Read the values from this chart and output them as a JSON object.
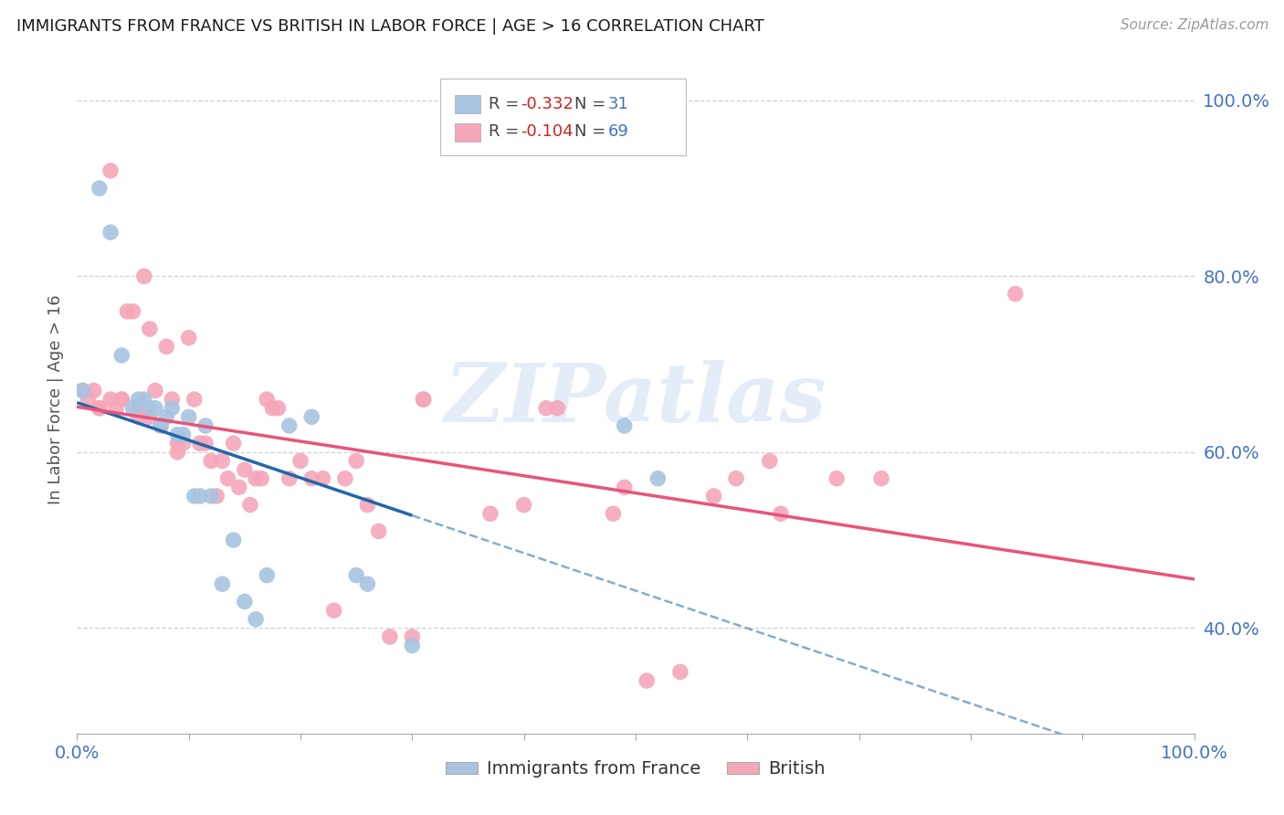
{
  "title": "IMMIGRANTS FROM FRANCE VS BRITISH IN LABOR FORCE | AGE > 16 CORRELATION CHART",
  "source": "Source: ZipAtlas.com",
  "ylabel": "In Labor Force | Age > 16",
  "xlim": [
    0.0,
    1.0
  ],
  "ylim": [
    0.28,
    1.04
  ],
  "yticks": [
    0.4,
    0.6,
    0.8,
    1.0
  ],
  "ytick_labels": [
    "40.0%",
    "60.0%",
    "80.0%",
    "100.0%"
  ],
  "france_color": "#a8c4e0",
  "british_color": "#f4a7b9",
  "france_line_color": "#2166ac",
  "british_line_color": "#e8547a",
  "watermark": "ZIPatlas",
  "france_legend_R": "-0.332",
  "france_legend_N": "31",
  "british_legend_R": "-0.104",
  "british_legend_N": "69",
  "france_points_x": [
    0.005,
    0.02,
    0.03,
    0.04,
    0.05,
    0.055,
    0.06,
    0.065,
    0.07,
    0.075,
    0.08,
    0.085,
    0.09,
    0.095,
    0.1,
    0.105,
    0.11,
    0.115,
    0.12,
    0.13,
    0.14,
    0.15,
    0.16,
    0.17,
    0.19,
    0.21,
    0.25,
    0.26,
    0.3,
    0.49,
    0.52
  ],
  "france_points_y": [
    0.67,
    0.9,
    0.85,
    0.71,
    0.65,
    0.66,
    0.66,
    0.65,
    0.65,
    0.63,
    0.64,
    0.65,
    0.62,
    0.62,
    0.64,
    0.55,
    0.55,
    0.63,
    0.55,
    0.45,
    0.5,
    0.43,
    0.41,
    0.46,
    0.63,
    0.64,
    0.46,
    0.45,
    0.38,
    0.63,
    0.57
  ],
  "british_points_x": [
    0.005,
    0.01,
    0.015,
    0.02,
    0.02,
    0.03,
    0.03,
    0.035,
    0.04,
    0.04,
    0.045,
    0.05,
    0.055,
    0.055,
    0.06,
    0.065,
    0.065,
    0.07,
    0.075,
    0.08,
    0.085,
    0.09,
    0.09,
    0.095,
    0.1,
    0.105,
    0.11,
    0.115,
    0.12,
    0.125,
    0.13,
    0.135,
    0.14,
    0.145,
    0.15,
    0.155,
    0.16,
    0.165,
    0.17,
    0.175,
    0.18,
    0.19,
    0.2,
    0.21,
    0.22,
    0.23,
    0.24,
    0.25,
    0.26,
    0.27,
    0.28,
    0.3,
    0.31,
    0.31,
    0.37,
    0.4,
    0.42,
    0.43,
    0.48,
    0.49,
    0.51,
    0.54,
    0.57,
    0.59,
    0.62,
    0.63,
    0.68,
    0.72,
    0.84
  ],
  "british_points_y": [
    0.67,
    0.66,
    0.67,
    0.65,
    0.65,
    0.92,
    0.66,
    0.65,
    0.66,
    0.66,
    0.76,
    0.76,
    0.65,
    0.64,
    0.8,
    0.74,
    0.64,
    0.67,
    0.63,
    0.72,
    0.66,
    0.6,
    0.61,
    0.61,
    0.73,
    0.66,
    0.61,
    0.61,
    0.59,
    0.55,
    0.59,
    0.57,
    0.61,
    0.56,
    0.58,
    0.54,
    0.57,
    0.57,
    0.66,
    0.65,
    0.65,
    0.57,
    0.59,
    0.57,
    0.57,
    0.42,
    0.57,
    0.59,
    0.54,
    0.51,
    0.39,
    0.39,
    0.66,
    0.66,
    0.53,
    0.54,
    0.65,
    0.65,
    0.53,
    0.56,
    0.34,
    0.35,
    0.55,
    0.57,
    0.59,
    0.53,
    0.57,
    0.57,
    0.78
  ]
}
